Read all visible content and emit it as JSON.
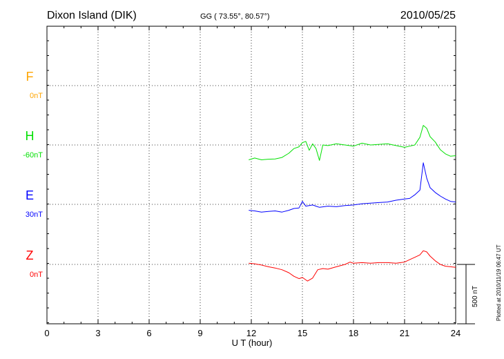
{
  "chart_data": {
    "type": "line",
    "station": "Dixon Island (DIK)",
    "coords": "GG ( 73.55°,  80.57°)",
    "date": "2010/05/25",
    "xlabel": "U T (hour)",
    "xlim": [
      0,
      24
    ],
    "x_ticks": [
      "0",
      "3",
      "6",
      "9",
      "12",
      "15",
      "18",
      "21",
      "24"
    ],
    "scale_label": "500 nT",
    "plotted_note": "Plotted at 2010/11/19 06:47 UT",
    "grid": true,
    "series": [
      {
        "name": "F",
        "baseline_label": "0nT",
        "color": "#ffa500",
        "x": [],
        "y": []
      },
      {
        "name": "H",
        "baseline_label": "-60nT",
        "color": "#00e000",
        "x": [
          11.85,
          12.2,
          12.6,
          13.0,
          13.4,
          13.8,
          14.2,
          14.5,
          14.8,
          15.0,
          15.2,
          15.4,
          15.6,
          15.8,
          16.0,
          16.2,
          16.5,
          17.0,
          17.5,
          18.0,
          18.5,
          19.0,
          19.5,
          20.0,
          20.5,
          21.0,
          21.3,
          21.6,
          21.9,
          22.1,
          22.3,
          22.5,
          22.8,
          23.1,
          23.4,
          23.7,
          24.0
        ],
        "y": [
          -125,
          -110,
          -125,
          -120,
          -118,
          -105,
          -70,
          -30,
          -15,
          20,
          30,
          -45,
          10,
          -30,
          -130,
          0,
          -5,
          10,
          0,
          -10,
          15,
          0,
          5,
          10,
          -5,
          -20,
          -10,
          0,
          65,
          165,
          140,
          70,
          25,
          -40,
          -75,
          -95,
          -90
        ]
      },
      {
        "name": "E",
        "baseline_label": "30nT",
        "color": "#0000ff",
        "x": [
          11.85,
          12.2,
          12.6,
          13.0,
          13.4,
          13.8,
          14.2,
          14.5,
          14.8,
          15.0,
          15.2,
          15.4,
          15.6,
          15.8,
          16.0,
          16.5,
          17.0,
          17.5,
          18.0,
          18.5,
          19.0,
          19.5,
          20.0,
          20.5,
          21.0,
          21.3,
          21.6,
          21.9,
          22.1,
          22.3,
          22.5,
          22.8,
          23.1,
          23.4,
          23.7,
          24.0
        ],
        "y": [
          -50,
          -55,
          -65,
          -60,
          -55,
          -65,
          -50,
          -35,
          -30,
          25,
          -15,
          -10,
          -5,
          -15,
          -25,
          -15,
          -20,
          -10,
          -5,
          5,
          10,
          15,
          20,
          35,
          45,
          50,
          80,
          120,
          350,
          220,
          140,
          100,
          70,
          45,
          25,
          20
        ]
      },
      {
        "name": "Z",
        "baseline_label": "0nT",
        "color": "#ff0000",
        "x": [
          11.85,
          12.2,
          12.6,
          13.0,
          13.4,
          13.8,
          14.2,
          14.5,
          14.8,
          15.0,
          15.3,
          15.6,
          15.9,
          16.2,
          16.5,
          17.0,
          17.5,
          17.8,
          18.0,
          18.5,
          19.0,
          19.5,
          20.0,
          20.5,
          21.0,
          21.3,
          21.6,
          21.9,
          22.1,
          22.3,
          22.5,
          22.8,
          23.1,
          23.4,
          23.7,
          24.0
        ],
        "y": [
          10,
          5,
          -5,
          -20,
          -30,
          -45,
          -70,
          -100,
          -120,
          -110,
          -140,
          -115,
          -45,
          -35,
          -40,
          -20,
          0,
          20,
          10,
          15,
          10,
          15,
          15,
          10,
          20,
          40,
          60,
          80,
          115,
          105,
          70,
          30,
          0,
          -15,
          -20,
          -25
        ]
      }
    ]
  }
}
